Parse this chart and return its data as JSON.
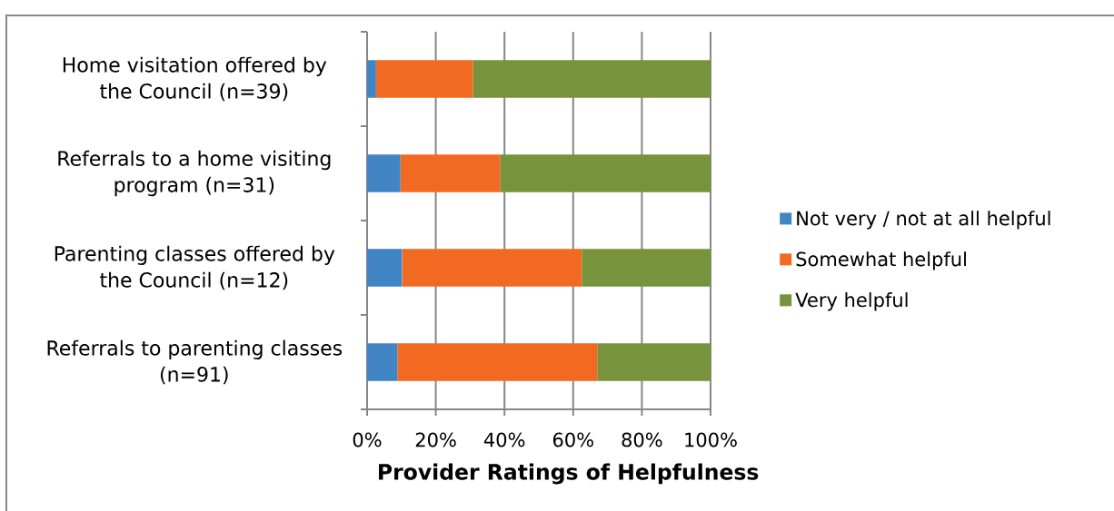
{
  "chart_data": {
    "type": "bar",
    "orientation": "horizontal",
    "stacked": true,
    "xlabel": "Provider Ratings of Helpfulness",
    "categories": [
      "Home visitation offered by the Council (n=39)",
      "Referrals to a home visiting program (n=31)",
      "Parenting classes offered by the Council (n=12)",
      "Referrals to parenting classes (n=91)"
    ],
    "series": [
      {
        "name": "Not very / not at all helpful",
        "color": "#4185c5",
        "values": [
          2.6,
          9.7,
          10.2,
          8.8
        ]
      },
      {
        "name": "Somewhat helpful",
        "color": "#f26a22",
        "values": [
          28.2,
          29.0,
          52.3,
          58.2
        ]
      },
      {
        "name": "Very helpful",
        "color": "#77933c",
        "values": [
          69.2,
          61.3,
          37.5,
          33.0
        ]
      }
    ],
    "xlim": [
      0,
      100
    ],
    "xticks": [
      {
        "value": 0,
        "label": "0%"
      },
      {
        "value": 20,
        "label": "20%"
      },
      {
        "value": 40,
        "label": "40%"
      },
      {
        "value": 60,
        "label": "60%"
      },
      {
        "value": 80,
        "label": "80%"
      },
      {
        "value": 100,
        "label": "100%"
      }
    ],
    "grid": "x",
    "legend": "right"
  }
}
